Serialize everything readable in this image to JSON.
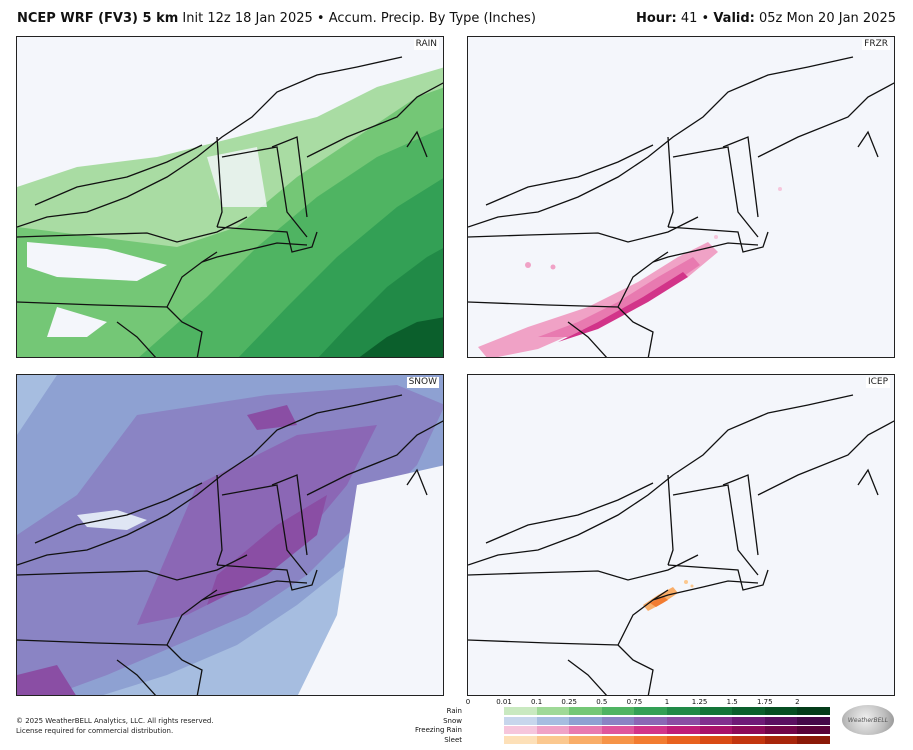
{
  "header": {
    "model": "NCEP WRF (FV3) 5 km",
    "init": "Init 12z 18 Jan 2025",
    "separator": "•",
    "product": "Accum. Precip. By Type (Inches)",
    "hour_label": "Hour:",
    "hour_value": "41",
    "valid_label": "Valid:",
    "valid_value": "05z Mon 20 Jan 2025"
  },
  "panels": {
    "rain": "RAIN",
    "frzr": "FRZR",
    "snow": "SNOW",
    "icep": "ICEP"
  },
  "legend": {
    "ticks": [
      "0",
      "0.01",
      "0.1",
      "0.25",
      "0.5",
      "0.75",
      "1",
      "1.25",
      "1.5",
      "1.75",
      "2"
    ],
    "rows": [
      {
        "label": "Rain",
        "colors": [
          "#c9e9c0",
          "#9fd997",
          "#74c776",
          "#4fb462",
          "#33a055",
          "#218a47",
          "#137438",
          "#0b5f2c",
          "#064e22",
          "#033c19"
        ]
      },
      {
        "label": "Snow",
        "colors": [
          "#c7d6ec",
          "#a6bde0",
          "#8ea1d2",
          "#8a84c4",
          "#8b67b5",
          "#8a4ea4",
          "#812f8e",
          "#6f1a77",
          "#5a0f61",
          "#440848"
        ]
      },
      {
        "label": "Freezing Rain",
        "colors": [
          "#f6c6dc",
          "#f0a2c6",
          "#e87ab0",
          "#df569c",
          "#d23489",
          "#bf1d78",
          "#a81169",
          "#8d0a58",
          "#720548",
          "#580238"
        ]
      },
      {
        "label": "Sleet",
        "colors": [
          "#fde0b8",
          "#fbc88f",
          "#f9ad68",
          "#f69448",
          "#f27c31",
          "#e8621f",
          "#d94b15",
          "#c3360f",
          "#a8260b",
          "#8a1907"
        ]
      }
    ]
  },
  "footer": {
    "copyright": "© 2025 WeatherBELL Analytics, LLC. All rights reserved.",
    "license": "License required for commercial distribution."
  },
  "brand": "WeatherBELL"
}
